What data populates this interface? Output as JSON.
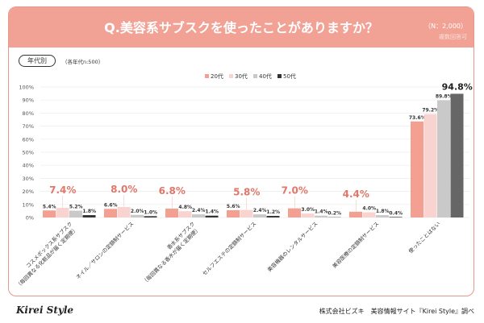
{
  "header": {
    "title": "Q.美容系サブスクを使ったことがありますか？",
    "n": "（N：2,000）",
    "multi": "複数回答可"
  },
  "segment": {
    "tag": "年代別",
    "note": "（各年代n:500）"
  },
  "footer": {
    "logo": "Kirei Style",
    "credit": "株式会社ビズキ　美容情報サイト『Kirei Style』調べ"
  },
  "chart_data": {
    "type": "bar",
    "ylim": [
      0,
      100
    ],
    "yticks": [
      "0%",
      "10%",
      "20%",
      "30%",
      "40%",
      "50%",
      "60%",
      "70%",
      "80%",
      "90%",
      "100%"
    ],
    "grid": true,
    "legend_position": "top-center",
    "categories": [
      [
        "コスメボックス系サブスク",
        "（毎回異なる化粧品が届く定期便）"
      ],
      [
        "ネイル／サロンの定額制サービス"
      ],
      [
        "香水系サブスク",
        "（毎回異なる香水が届く定期便）"
      ],
      [
        "セルフエステの定額制サービス"
      ],
      [
        "美容機器のレンタルサービス"
      ],
      [
        "美容医療の定額制サービス"
      ],
      [
        "使ったことはない"
      ]
    ],
    "series": [
      {
        "name": "20代",
        "color": "#f3a093",
        "values": [
          5.4,
          6.6,
          6.8,
          5.6,
          7.0,
          4.4,
          73.6
        ]
      },
      {
        "name": "30代",
        "color": "#f9d3cf",
        "values": [
          7.4,
          8.0,
          4.8,
          5.8,
          3.0,
          4.0,
          79.2
        ]
      },
      {
        "name": "40代",
        "color": "#c9c9c9",
        "values": [
          5.2,
          2.0,
          2.4,
          2.4,
          1.4,
          1.8,
          89.8
        ]
      },
      {
        "name": "50代",
        "color": "#333333",
        "values": [
          1.8,
          1.0,
          1.4,
          1.2,
          0.2,
          0.4,
          94.8
        ]
      }
    ],
    "highlight_color": "#e0776b"
  }
}
